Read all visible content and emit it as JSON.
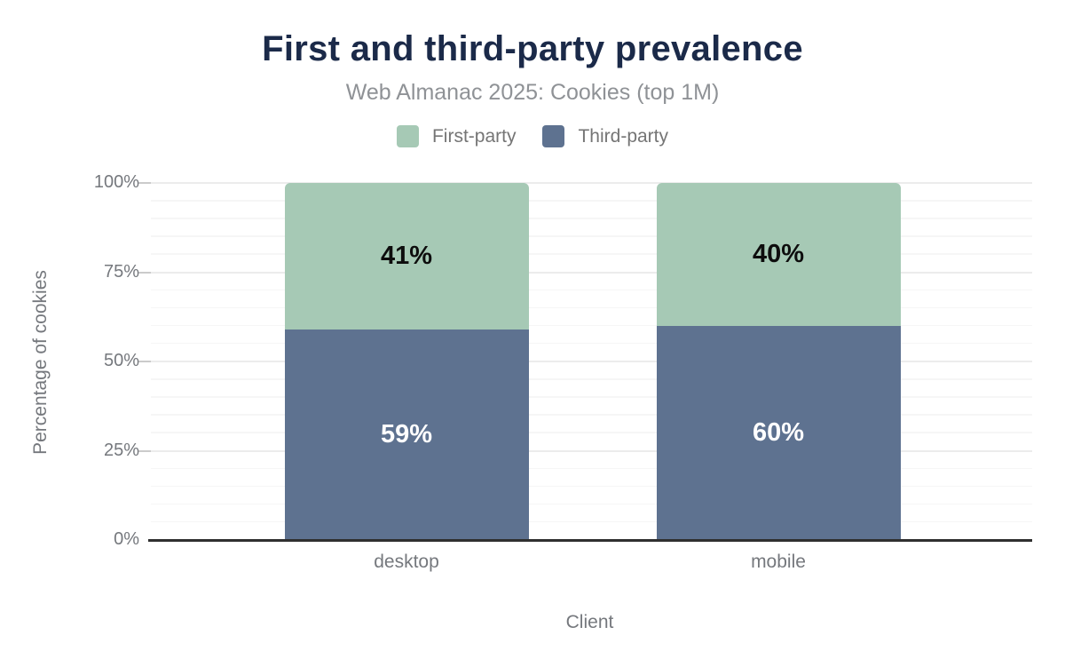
{
  "header": {
    "title": "First and third-party prevalence",
    "subtitle": "Web Almanac 2025: Cookies (top 1M)",
    "title_color": "#1b2a49",
    "subtitle_color": "#8f9296"
  },
  "legend": {
    "position": "top",
    "items": [
      {
        "label": "First-party",
        "color": "#a6c9b5"
      },
      {
        "label": "Third-party",
        "color": "#5e7290"
      }
    ]
  },
  "chart_data": {
    "type": "bar",
    "stacked": true,
    "title": "First and third-party prevalence",
    "subtitle": "Web Almanac 2025: Cookies (top 1M)",
    "xlabel": "Client",
    "ylabel": "Percentage of cookies",
    "categories": [
      "desktop",
      "mobile"
    ],
    "series": [
      {
        "name": "First-party",
        "color": "#a6c9b5",
        "values": [
          41,
          40
        ],
        "value_labels": [
          "41%",
          "40%"
        ],
        "label_color": "#0d0d0d"
      },
      {
        "name": "Third-party",
        "color": "#5e7290",
        "values": [
          59,
          60
        ],
        "value_labels": [
          "59%",
          "60%"
        ],
        "label_color": "#ffffff"
      }
    ],
    "ylim": [
      0,
      100
    ],
    "yticks": [
      {
        "value": 0,
        "label": "0%"
      },
      {
        "value": 25,
        "label": "25%"
      },
      {
        "value": 50,
        "label": "50%"
      },
      {
        "value": 75,
        "label": "75%"
      },
      {
        "value": 100,
        "label": "100%"
      }
    ],
    "minor_grid_step": 5,
    "grid": true,
    "legend_position": "top"
  },
  "colors": {
    "axis_line": "#2f2f2f",
    "grid_minor": "#f6f6f6",
    "grid_major": "#ececec",
    "tick_major": "#cbcbcb",
    "muted_text": "#75787d",
    "legend_text": "#757575"
  }
}
